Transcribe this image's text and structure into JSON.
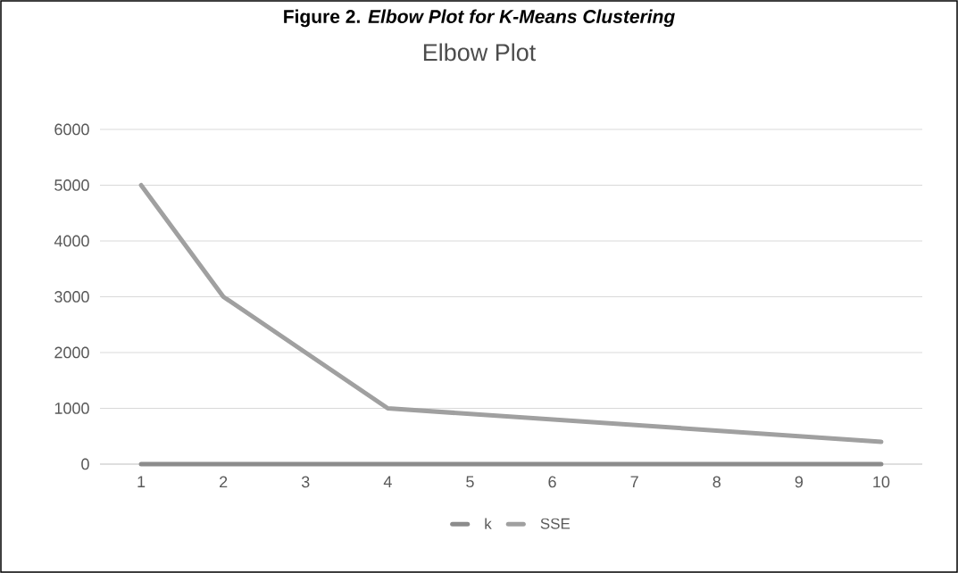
{
  "chart_data": {
    "type": "line",
    "title": "Figure 2. *Elbow Plot for K-Means Clustering*",
    "subtitle": "Elbow Plot",
    "categories": [
      "1",
      "2",
      "3",
      "4",
      "5",
      "6",
      "7",
      "8",
      "9",
      "10"
    ],
    "series": [
      {
        "name": "k",
        "color": "#8c8c8c",
        "values": [
          0,
          0,
          0,
          0,
          0,
          0,
          0,
          0,
          0,
          0
        ]
      },
      {
        "name": "SSE",
        "color": "#a0a0a0",
        "values": [
          5000,
          3000,
          2000,
          1000,
          900,
          800,
          700,
          600,
          500,
          400
        ]
      }
    ],
    "ylim": [
      0,
      6000
    ],
    "yticks": [
      0,
      1000,
      2000,
      3000,
      4000,
      5000,
      6000
    ],
    "grid": "y",
    "legend": "bottom"
  }
}
